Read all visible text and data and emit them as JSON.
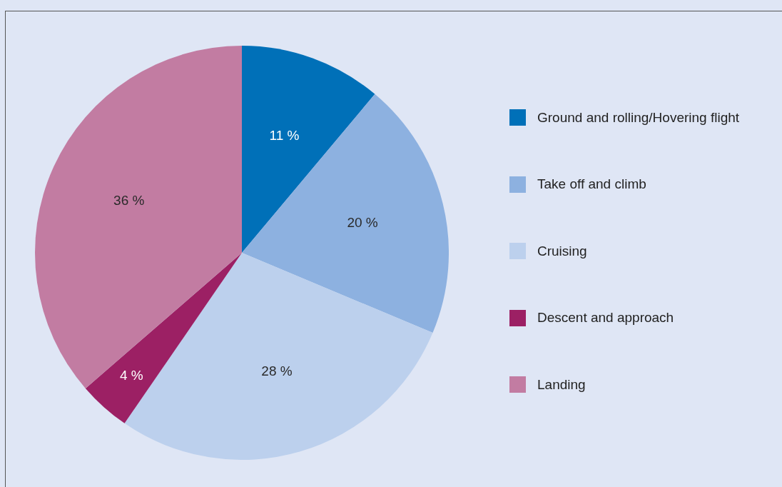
{
  "chart_data": {
    "type": "pie",
    "categories": [
      "Ground and rolling/Hovering flight",
      "Take off and climb",
      "Cruising",
      "Descent and approach",
      "Landing"
    ],
    "values": [
      11,
      20,
      28,
      4,
      36
    ],
    "colors": [
      "#0070b8",
      "#8db1e0",
      "#bcd0ed",
      "#9c2064",
      "#c27ca2"
    ],
    "value_labels": [
      "11 %",
      "20 %",
      "28 %",
      "4 %",
      "36 %"
    ],
    "legend": "right"
  }
}
